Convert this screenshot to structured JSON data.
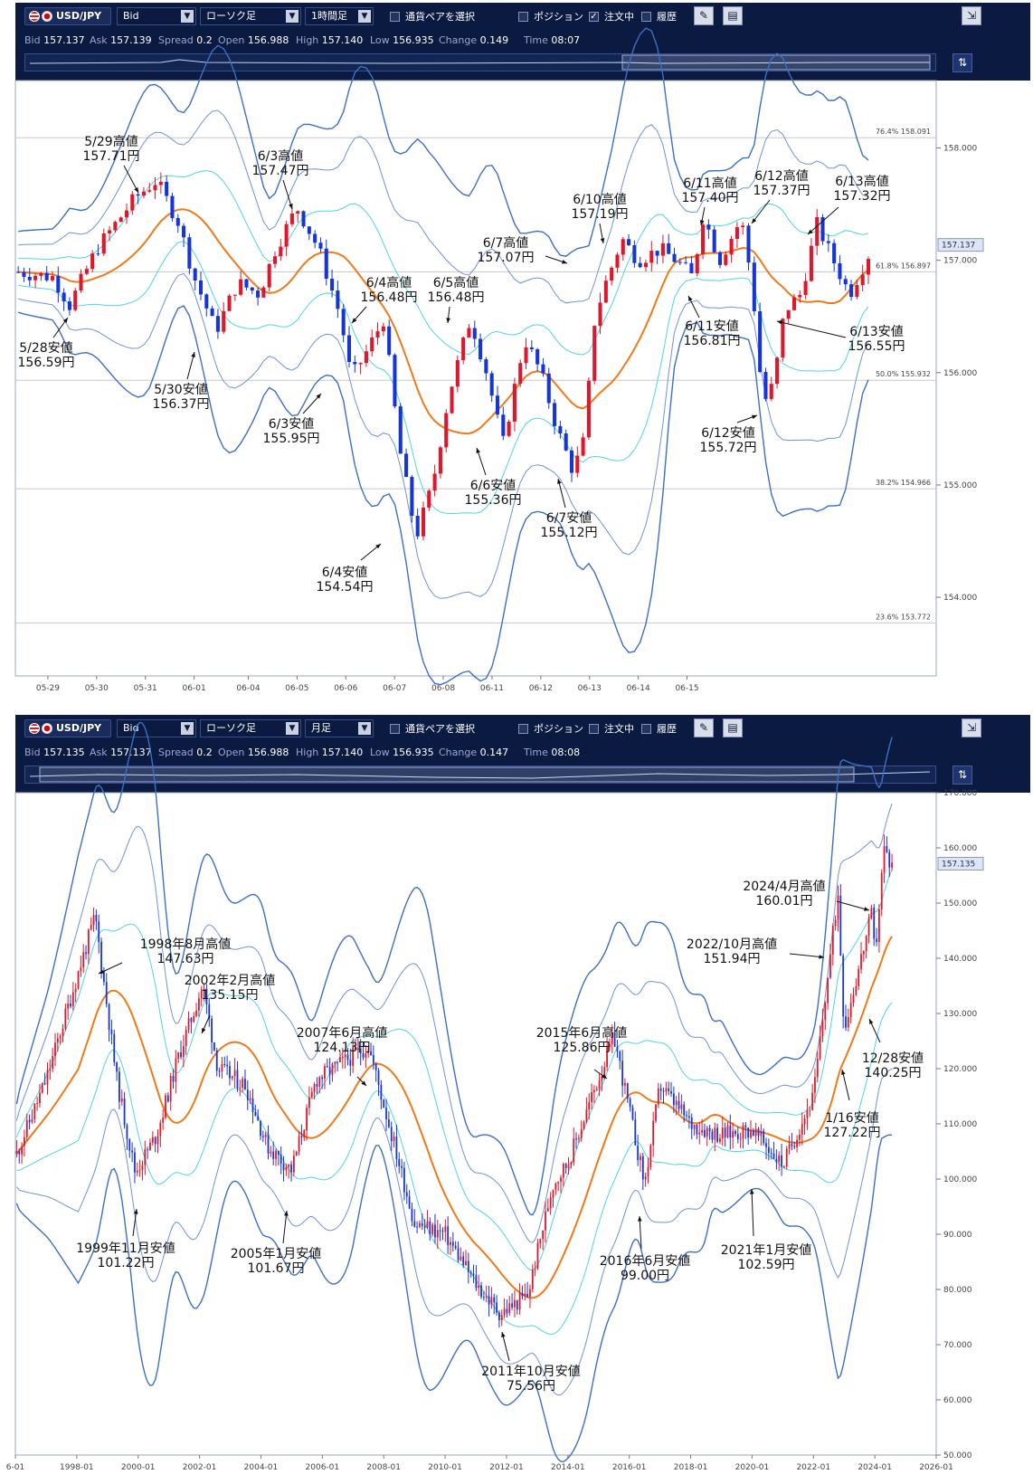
{
  "panels": [
    {
      "toolbar": {
        "pair": "USD/JPY",
        "price_type": "Bid",
        "chart_type": "ローソク足",
        "period": "1時間足",
        "select_pair": "通貨ペアを選択",
        "position": "ポジション",
        "orders": "注文中",
        "history": "履歴",
        "orders_checked": true
      },
      "stats": {
        "bid_label": "Bid",
        "bid": "157.137",
        "ask_label": "Ask",
        "ask": "157.139",
        "spread_label": "Spread",
        "spread": "0.2",
        "open_label": "Open",
        "open": "156.988",
        "high_label": "High",
        "high": "157.140",
        "low_label": "Low",
        "low": "156.935",
        "change_label": "Change",
        "change": "0.149",
        "time_label": "Time",
        "time": "08:07"
      },
      "chart_data": {
        "type": "candlestick",
        "y_range": [
          153.3,
          158.6
        ],
        "y_ticks": [
          "158.000",
          "157.000",
          "156.000",
          "155.000",
          "154.000"
        ],
        "x_ticks": [
          "05-29",
          "05-30",
          "05-31",
          "06-01",
          "06-04",
          "06-05",
          "06-06",
          "06-07",
          "06-08",
          "06-11",
          "06-12",
          "06-13",
          "06-14",
          "06-15"
        ],
        "current_price": "157.137",
        "fib_levels": [
          {
            "pct": "76.4%",
            "value": "158.091"
          },
          {
            "pct": "61.8%",
            "value": "156.897"
          },
          {
            "pct": "50.0%",
            "value": "155.932"
          },
          {
            "pct": "38.2%",
            "value": "154.966"
          },
          {
            "pct": "23.6%",
            "value": "153.772"
          }
        ],
        "price_path": [
          [
            0,
            156.9
          ],
          [
            7,
            156.85
          ],
          [
            10,
            156.6
          ],
          [
            15,
            157.1
          ],
          [
            22,
            157.55
          ],
          [
            26,
            157.71
          ],
          [
            30,
            157.35
          ],
          [
            33,
            156.85
          ],
          [
            37,
            156.37
          ],
          [
            41,
            156.8
          ],
          [
            45,
            156.7
          ],
          [
            48,
            157.1
          ],
          [
            52,
            157.47
          ],
          [
            56,
            157.1
          ],
          [
            60,
            156.5
          ],
          [
            62,
            155.95
          ],
          [
            65,
            156.2
          ],
          [
            68,
            156.48
          ],
          [
            71,
            155.3
          ],
          [
            74,
            154.54
          ],
          [
            77,
            155.0
          ],
          [
            80,
            155.8
          ],
          [
            84,
            156.48
          ],
          [
            87,
            156.0
          ],
          [
            90,
            155.36
          ],
          [
            94,
            156.3
          ],
          [
            97,
            156.0
          ],
          [
            100,
            155.5
          ],
          [
            103,
            155.12
          ],
          [
            105,
            155.4
          ],
          [
            107,
            156.5
          ],
          [
            109,
            156.8
          ],
          [
            112,
            157.19
          ],
          [
            115,
            157.0
          ],
          [
            119,
            157.1
          ],
          [
            122,
            157.0
          ],
          [
            125,
            156.85
          ],
          [
            127,
            157.4
          ],
          [
            130,
            157.0
          ],
          [
            134,
            157.37
          ],
          [
            136,
            156.8
          ],
          [
            138,
            155.72
          ],
          [
            140,
            155.9
          ],
          [
            142,
            156.55
          ],
          [
            145,
            156.7
          ],
          [
            148,
            157.32
          ],
          [
            151,
            157.0
          ],
          [
            154,
            156.7
          ],
          [
            158,
            157.1
          ]
        ],
        "annotations": [
          {
            "date": "5/28安値",
            "price": "156.59円"
          },
          {
            "date": "5/29高値",
            "price": "157.71円"
          },
          {
            "date": "5/30安値",
            "price": "156.37円"
          },
          {
            "date": "6/3高値",
            "price": "157.47円"
          },
          {
            "date": "6/3安値",
            "price": "155.95円"
          },
          {
            "date": "6/4高値",
            "price": "156.48円"
          },
          {
            "date": "6/4安値",
            "price": "154.54円"
          },
          {
            "date": "6/5高値",
            "price": "156.48円"
          },
          {
            "date": "6/6安値",
            "price": "155.36円"
          },
          {
            "date": "6/7高値",
            "price": "157.07円"
          },
          {
            "date": "6/7安値",
            "price": "155.12円"
          },
          {
            "date": "6/10高値",
            "price": "157.19円"
          },
          {
            "date": "6/11高値",
            "price": "157.40円"
          },
          {
            "date": "6/11安値",
            "price": "156.81円"
          },
          {
            "date": "6/12高値",
            "price": "157.37円"
          },
          {
            "date": "6/12安値",
            "price": "155.72円"
          },
          {
            "date": "6/13高値",
            "price": "157.32円"
          },
          {
            "date": "6/13安値",
            "price": "156.55円"
          }
        ]
      }
    },
    {
      "toolbar": {
        "pair": "USD/JPY",
        "price_type": "Bid",
        "chart_type": "ローソク足",
        "period": "月足",
        "select_pair": "通貨ペアを選択",
        "position": "ポジション",
        "orders": "注文中",
        "history": "履歴",
        "orders_checked": false
      },
      "stats": {
        "bid_label": "Bid",
        "bid": "157.135",
        "ask_label": "Ask",
        "ask": "157.137",
        "spread_label": "Spread",
        "spread": "0.2",
        "open_label": "Open",
        "open": "156.988",
        "high_label": "High",
        "high": "157.140",
        "low_label": "Low",
        "low": "156.935",
        "change_label": "Change",
        "change": "0.147",
        "time_label": "Time",
        "time": "08:08"
      },
      "chart_data": {
        "type": "candlestick",
        "y_range": [
          50,
          170
        ],
        "y_ticks": [
          "170.000",
          "160.000",
          "150.000",
          "140.000",
          "130.000",
          "120.000",
          "110.000",
          "100.000",
          "90.000",
          "80.000",
          "70.000",
          "60.000",
          "50.000"
        ],
        "x_ticks": [
          "6-01",
          "1998-01",
          "2000-01",
          "2002-01",
          "2004-01",
          "2006-01",
          "2008-01",
          "2010-01",
          "2012-01",
          "2014-01",
          "2016-01",
          "2018-01",
          "2020-01",
          "2022-01",
          "2024-01",
          "2026-01"
        ],
        "current_price": "157.135",
        "price_path": [
          [
            1996.0,
            104
          ],
          [
            1997.0,
            118
          ],
          [
            1998.6,
            147.63
          ],
          [
            1999.3,
            118
          ],
          [
            1999.9,
            101.22
          ],
          [
            2000.6,
            108
          ],
          [
            2001.3,
            122
          ],
          [
            2002.1,
            135.15
          ],
          [
            2002.6,
            120
          ],
          [
            2003.5,
            117
          ],
          [
            2004.2,
            106
          ],
          [
            2005.0,
            101.67
          ],
          [
            2005.8,
            118
          ],
          [
            2007.5,
            124.13
          ],
          [
            2008.4,
            105
          ],
          [
            2009.0,
            92
          ],
          [
            2010.0,
            90
          ],
          [
            2011.0,
            81
          ],
          [
            2011.8,
            75.56
          ],
          [
            2012.7,
            79
          ],
          [
            2013.5,
            99
          ],
          [
            2014.0,
            103
          ],
          [
            2015.5,
            125.86
          ],
          [
            2016.5,
            99.0
          ],
          [
            2017.0,
            117
          ],
          [
            2018.0,
            110
          ],
          [
            2019.0,
            108
          ],
          [
            2020.0,
            109
          ],
          [
            2021.0,
            102.59
          ],
          [
            2022.0,
            115
          ],
          [
            2022.8,
            151.94
          ],
          [
            2023.0,
            127.22
          ],
          [
            2023.9,
            148
          ],
          [
            2024.0,
            140.25
          ],
          [
            2024.3,
            160.01
          ],
          [
            2024.5,
            157.135
          ]
        ],
        "annotations": [
          {
            "date": "1998年8月高値",
            "price": "147.63円"
          },
          {
            "date": "1999年11月安値",
            "price": "101.22円"
          },
          {
            "date": "2002年2月高値",
            "price": "135.15円"
          },
          {
            "date": "2005年1月安値",
            "price": "101.67円"
          },
          {
            "date": "2007年6月高値",
            "price": "124.13円"
          },
          {
            "date": "2011年10月安値",
            "price": "75.56円"
          },
          {
            "date": "2015年6月高値",
            "price": "125.86円"
          },
          {
            "date": "2016年6月安値",
            "price": "99.00円"
          },
          {
            "date": "2021年1月安値",
            "price": "102.59円"
          },
          {
            "date": "2022/10月高値",
            "price": "151.94円"
          },
          {
            "date": "1/16安値",
            "price": "127.22円"
          },
          {
            "date": "12/28安値",
            "price": "140.25円"
          },
          {
            "date": "2024/4月高値",
            "price": "160.01円"
          }
        ]
      }
    }
  ]
}
